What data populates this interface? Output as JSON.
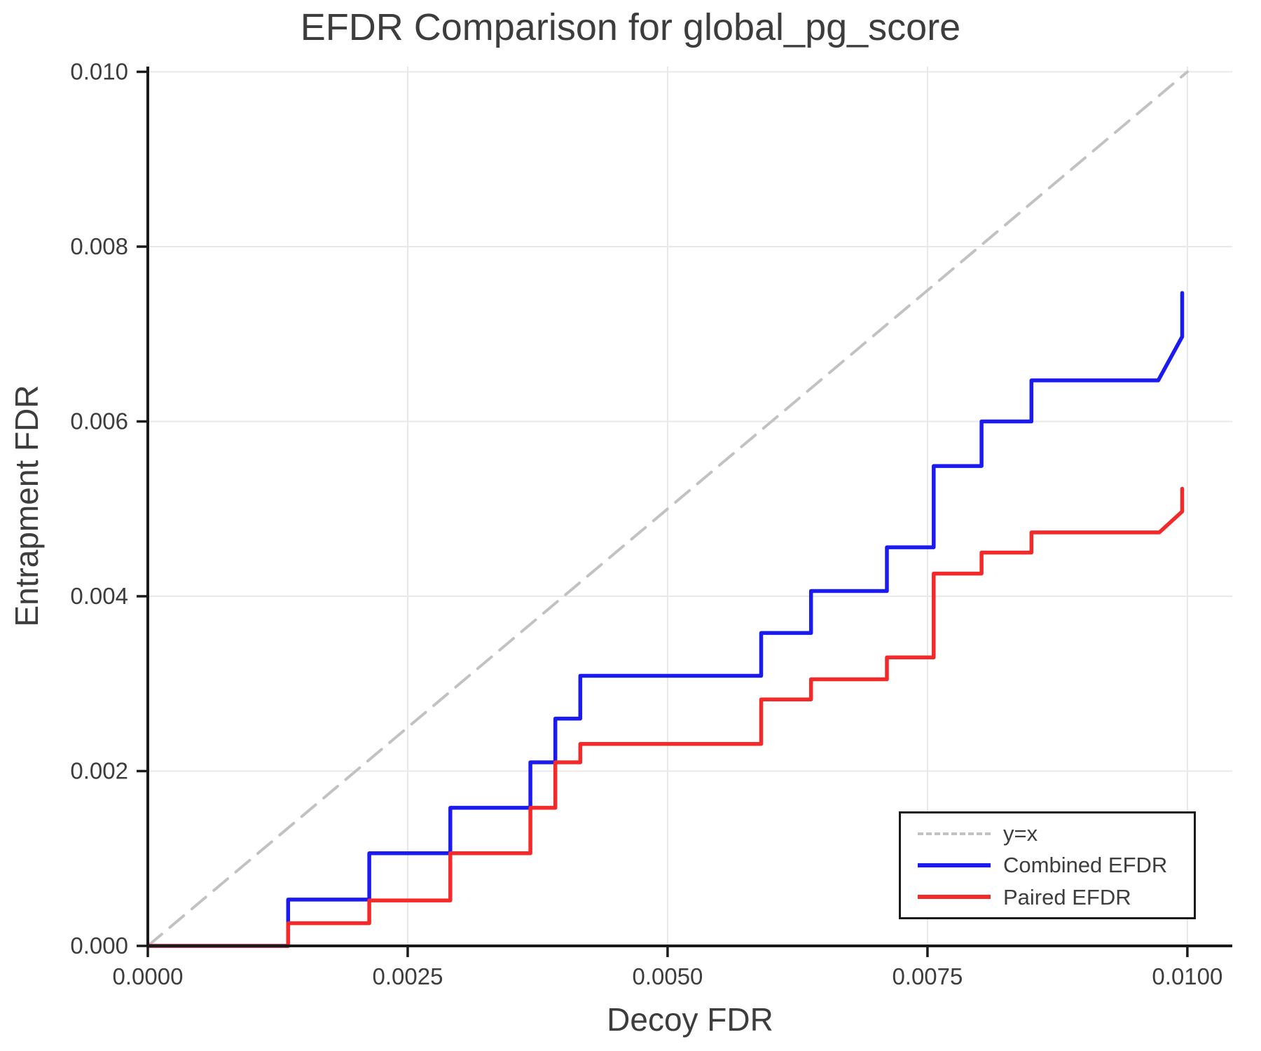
{
  "title": "EFDR Comparison for global_pg_score",
  "axes": {
    "xlabel": "Decoy FDR",
    "ylabel": "Entrapment FDR"
  },
  "colors": {
    "combined": "#1b1bef",
    "paired": "#f42a2a",
    "identity": "#c2c2c2",
    "grid": "#e8e8e8",
    "spine": "#1a1a1a",
    "text": "#3d3d3d"
  },
  "chart_data": {
    "type": "line",
    "title": "EFDR Comparison for global_pg_score",
    "xlabel": "Decoy FDR",
    "ylabel": "Entrapment FDR",
    "xlim": [
      0,
      0.010432
    ],
    "ylim": [
      0,
      0.01006
    ],
    "grid": true,
    "x_ticks": {
      "values": [
        0,
        0.0025,
        0.005,
        0.0075,
        0.01
      ],
      "labels": [
        "0.0000",
        "0.0025",
        "0.0050",
        "0.0075",
        "0.0100"
      ]
    },
    "y_ticks": {
      "values": [
        0,
        0.002,
        0.004,
        0.006,
        0.008,
        0.01
      ],
      "labels": [
        "0.000",
        "0.002",
        "0.004",
        "0.006",
        "0.008",
        "0.010"
      ]
    },
    "legend": {
      "position": "lower right",
      "entries": [
        {
          "label": "y=x",
          "color": "#c2c2c2",
          "style": "dashed"
        },
        {
          "label": "Combined EFDR",
          "color": "#1b1bef",
          "style": "solid"
        },
        {
          "label": "Paired EFDR",
          "color": "#f42a2a",
          "style": "solid"
        }
      ]
    },
    "series": [
      {
        "name": "y=x",
        "color": "#c2c2c2",
        "style": "dashed",
        "width": 4,
        "points": [
          [
            0,
            0
          ],
          [
            0.01,
            0.01
          ]
        ]
      },
      {
        "name": "Combined EFDR",
        "color": "#1b1bef",
        "style": "solid",
        "width": 5.5,
        "points": [
          [
            0,
            0
          ],
          [
            0.00135,
            0
          ],
          [
            0.00135,
            0.00053
          ],
          [
            0.00213,
            0.00053
          ],
          [
            0.00213,
            0.00106
          ],
          [
            0.00291,
            0.00106
          ],
          [
            0.00291,
            0.00158
          ],
          [
            0.00368,
            0.00158
          ],
          [
            0.00368,
            0.0021
          ],
          [
            0.00392,
            0.0021
          ],
          [
            0.00392,
            0.0026
          ],
          [
            0.00416,
            0.0026
          ],
          [
            0.00416,
            0.00309
          ],
          [
            0.0059,
            0.00309
          ],
          [
            0.0059,
            0.00358
          ],
          [
            0.00638,
            0.00358
          ],
          [
            0.00638,
            0.00406
          ],
          [
            0.00711,
            0.00406
          ],
          [
            0.00711,
            0.00456
          ],
          [
            0.00756,
            0.00456
          ],
          [
            0.00756,
            0.00549
          ],
          [
            0.00802,
            0.00549
          ],
          [
            0.00802,
            0.006
          ],
          [
            0.0085,
            0.006
          ],
          [
            0.0085,
            0.00647
          ],
          [
            0.00972,
            0.00647
          ],
          [
            0.00995,
            0.00697
          ],
          [
            0.00995,
            0.00747
          ]
        ]
      },
      {
        "name": "Paired EFDR",
        "color": "#f42a2a",
        "style": "solid",
        "width": 5.5,
        "points": [
          [
            0,
            0
          ],
          [
            0.00135,
            0
          ],
          [
            0.00135,
            0.00026
          ],
          [
            0.00213,
            0.00026
          ],
          [
            0.00213,
            0.00052
          ],
          [
            0.00291,
            0.00052
          ],
          [
            0.00291,
            0.00106
          ],
          [
            0.00368,
            0.00106
          ],
          [
            0.00368,
            0.00158
          ],
          [
            0.00392,
            0.00158
          ],
          [
            0.00392,
            0.0021
          ],
          [
            0.00416,
            0.0021
          ],
          [
            0.00416,
            0.00231
          ],
          [
            0.0059,
            0.00231
          ],
          [
            0.0059,
            0.00282
          ],
          [
            0.00638,
            0.00282
          ],
          [
            0.00638,
            0.00305
          ],
          [
            0.00711,
            0.00305
          ],
          [
            0.00711,
            0.0033
          ],
          [
            0.00756,
            0.0033
          ],
          [
            0.00756,
            0.00426
          ],
          [
            0.00802,
            0.00426
          ],
          [
            0.00802,
            0.0045
          ],
          [
            0.0085,
            0.0045
          ],
          [
            0.0085,
            0.00473
          ],
          [
            0.00973,
            0.00473
          ],
          [
            0.00995,
            0.00497
          ],
          [
            0.00995,
            0.00523
          ]
        ]
      }
    ]
  }
}
